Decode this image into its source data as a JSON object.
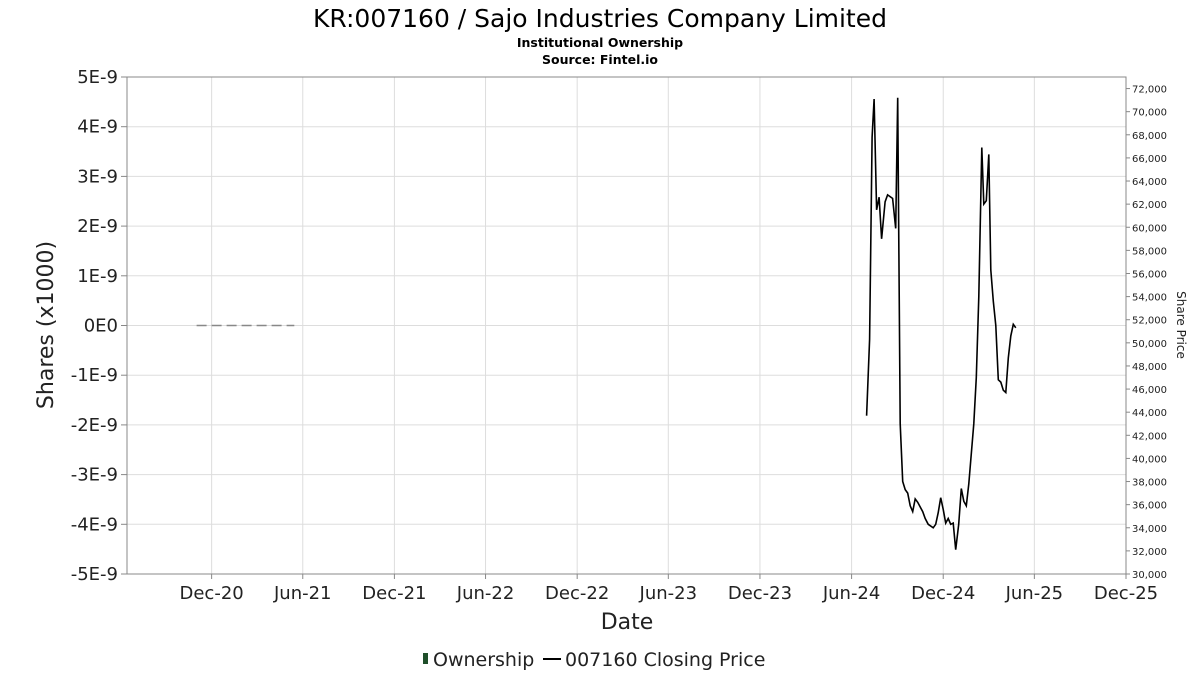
{
  "header": {
    "title": "KR:007160 / Sajo Industries Company Limited",
    "subtitle": "Institutional Ownership",
    "source": "Source: Fintel.io"
  },
  "legend": {
    "ownership_label": "Ownership",
    "price_label": "007160 Closing Price",
    "ownership_color": "#1f4f2a",
    "price_color": "#000000"
  },
  "colors": {
    "grid": "#dddddd",
    "axis": "#888888",
    "price_line": "#000000",
    "ownership_line": "#888888"
  },
  "chart_data": {
    "type": "line",
    "xlabel": "Date",
    "ylabel": "Shares (x1000)",
    "ylabel_right": "Share Price",
    "x_tick_labels": [
      "Dec-20",
      "Jun-21",
      "Dec-21",
      "Jun-22",
      "Dec-22",
      "Jun-23",
      "Dec-23",
      "Jun-24",
      "Dec-24",
      "Jun-25",
      "Dec-25"
    ],
    "x_tick_dates": [
      "2020-12-01",
      "2021-06-01",
      "2021-12-01",
      "2022-06-01",
      "2022-12-01",
      "2023-06-01",
      "2023-12-01",
      "2024-06-01",
      "2024-12-01",
      "2025-06-01",
      "2025-12-01"
    ],
    "xlim": [
      "2020-06-15",
      "2025-12-01"
    ],
    "y_left": {
      "lim": [
        -5e-09,
        5e-09
      ],
      "tick_labels": [
        "5E-9",
        "4E-9",
        "3E-9",
        "2E-9",
        "1E-9",
        "0E0",
        "-1E-9",
        "-2E-9",
        "-3E-9",
        "-4E-9",
        "-5E-9"
      ],
      "tick_values": [
        5e-09,
        4e-09,
        3e-09,
        2e-09,
        1e-09,
        0,
        -1e-09,
        -2e-09,
        -3e-09,
        -4e-09,
        -5e-09
      ]
    },
    "y_right": {
      "lim": [
        30000,
        73000
      ],
      "tick_labels": [
        "72,000",
        "70,000",
        "68,000",
        "66,000",
        "64,000",
        "62,000",
        "60,000",
        "58,000",
        "56,000",
        "54,000",
        "52,000",
        "50,000",
        "48,000",
        "46,000",
        "44,000",
        "42,000",
        "40,000",
        "38,000",
        "36,000",
        "34,000",
        "32,000",
        "30,000"
      ],
      "tick_values": [
        72000,
        70000,
        68000,
        66000,
        64000,
        62000,
        60000,
        58000,
        56000,
        54000,
        52000,
        50000,
        48000,
        46000,
        44000,
        42000,
        40000,
        38000,
        36000,
        34000,
        32000,
        30000
      ]
    },
    "grid": true,
    "series": [
      {
        "name": "Ownership",
        "axis": "left",
        "style": "dashed",
        "points": [
          [
            "2020-11-01",
            0
          ],
          [
            "2021-05-15",
            0
          ]
        ]
      },
      {
        "name": "007160 Closing Price",
        "axis": "right",
        "style": "solid",
        "points": [
          [
            "2024-07-01",
            43700
          ],
          [
            "2024-07-07",
            50300
          ],
          [
            "2024-07-12",
            67800
          ],
          [
            "2024-07-16",
            71100
          ],
          [
            "2024-07-21",
            61500
          ],
          [
            "2024-07-26",
            62600
          ],
          [
            "2024-07-31",
            59000
          ],
          [
            "2024-08-07",
            62200
          ],
          [
            "2024-08-12",
            62800
          ],
          [
            "2024-08-22",
            62500
          ],
          [
            "2024-08-28",
            59900
          ],
          [
            "2024-09-01",
            71200
          ],
          [
            "2024-09-06",
            43000
          ],
          [
            "2024-09-11",
            38000
          ],
          [
            "2024-09-16",
            37300
          ],
          [
            "2024-09-21",
            37000
          ],
          [
            "2024-09-26",
            35900
          ],
          [
            "2024-10-01",
            35400
          ],
          [
            "2024-10-06",
            36500
          ],
          [
            "2024-10-11",
            36200
          ],
          [
            "2024-10-21",
            35400
          ],
          [
            "2024-10-26",
            34800
          ],
          [
            "2024-11-01",
            34300
          ],
          [
            "2024-11-11",
            34000
          ],
          [
            "2024-11-16",
            34300
          ],
          [
            "2024-11-21",
            35300
          ],
          [
            "2024-11-26",
            36600
          ],
          [
            "2024-12-01",
            35600
          ],
          [
            "2024-12-06",
            34400
          ],
          [
            "2024-12-11",
            34800
          ],
          [
            "2024-12-16",
            34300
          ],
          [
            "2024-12-21",
            34400
          ],
          [
            "2024-12-26",
            32100
          ],
          [
            "2025-01-01",
            34300
          ],
          [
            "2025-01-06",
            37400
          ],
          [
            "2025-01-11",
            36300
          ],
          [
            "2025-01-16",
            35900
          ],
          [
            "2025-01-21",
            37800
          ],
          [
            "2025-01-31",
            43000
          ],
          [
            "2025-02-05",
            47000
          ],
          [
            "2025-02-10",
            54000
          ],
          [
            "2025-02-16",
            66900
          ],
          [
            "2025-02-20",
            62000
          ],
          [
            "2025-02-25",
            62300
          ],
          [
            "2025-03-02",
            66300
          ],
          [
            "2025-03-06",
            56300
          ],
          [
            "2025-03-11",
            53600
          ],
          [
            "2025-03-16",
            51500
          ],
          [
            "2025-03-21",
            46800
          ],
          [
            "2025-03-26",
            46600
          ],
          [
            "2025-03-31",
            45900
          ],
          [
            "2025-04-05",
            45700
          ],
          [
            "2025-04-10",
            48700
          ],
          [
            "2025-04-15",
            50600
          ],
          [
            "2025-04-20",
            51600
          ],
          [
            "2025-04-25",
            51300
          ]
        ]
      }
    ]
  }
}
